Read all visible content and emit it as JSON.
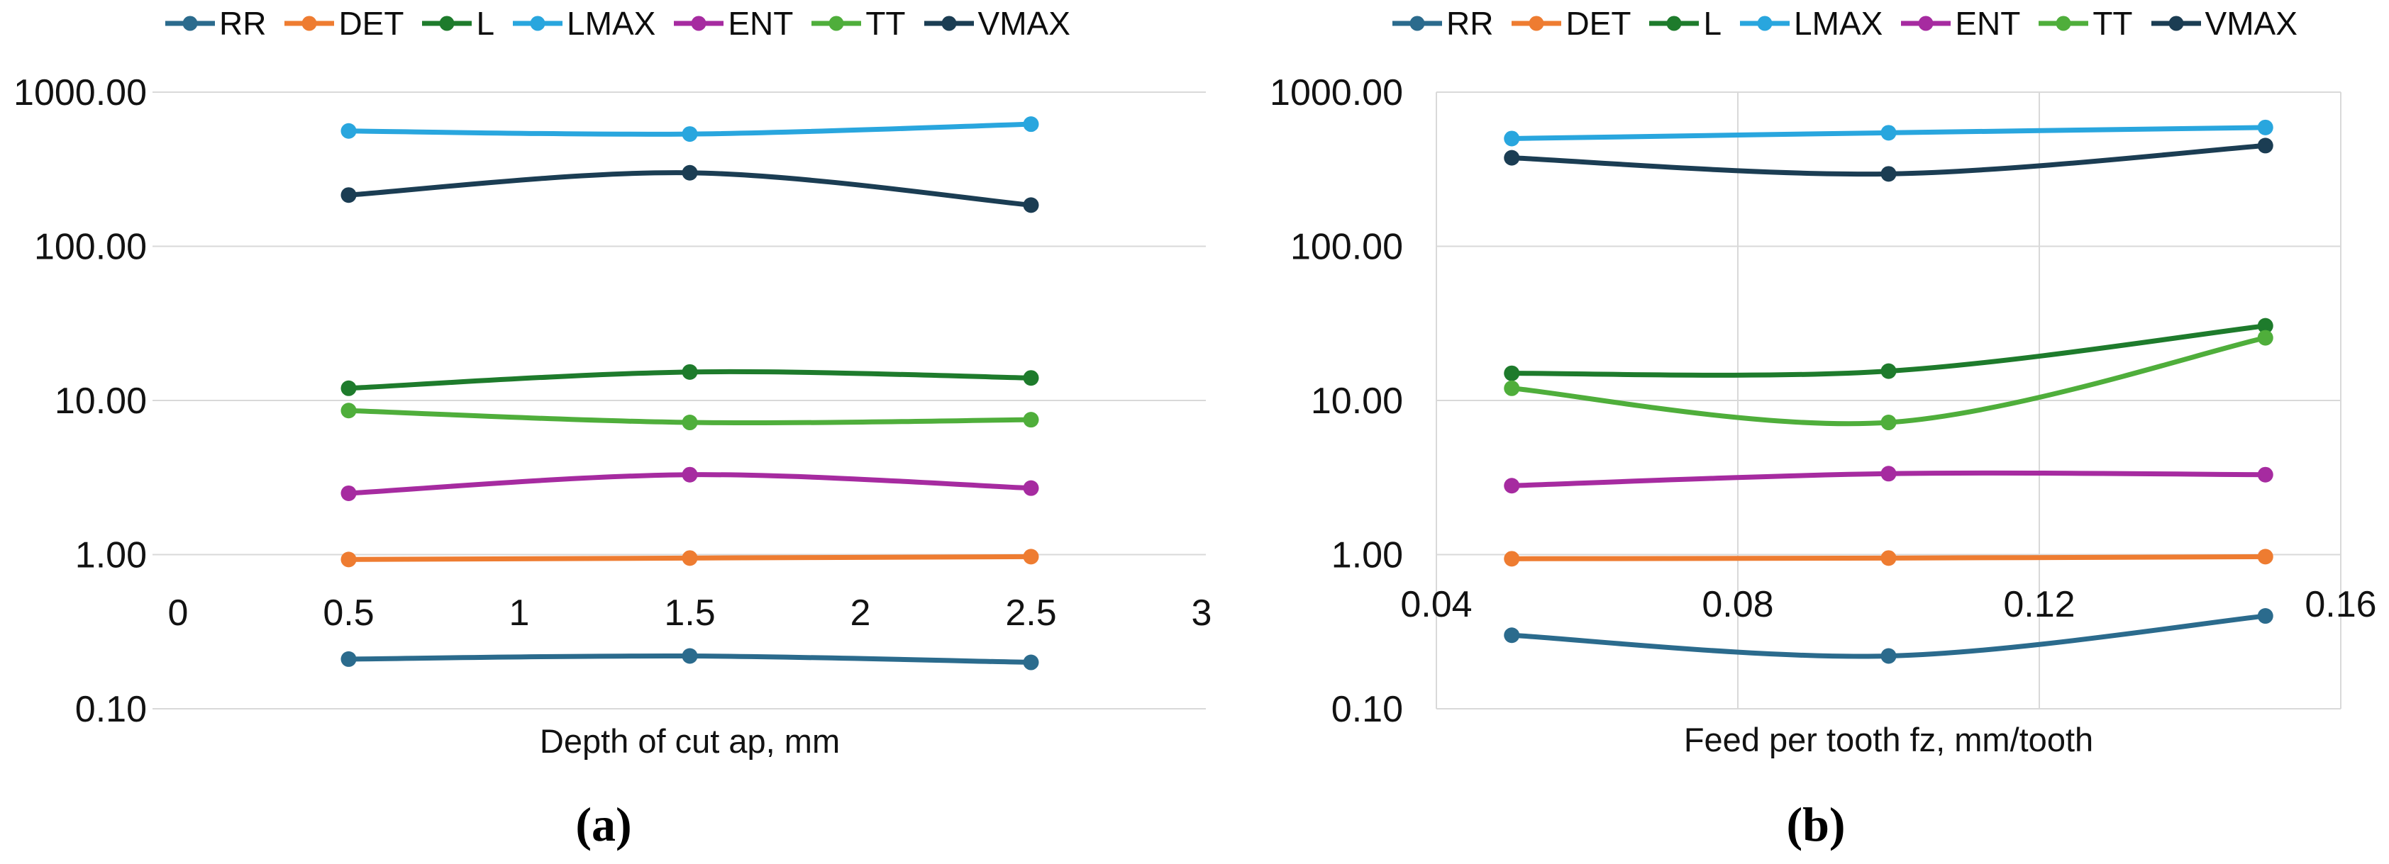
{
  "figure": {
    "background": "#ffffff",
    "gridline_color": "#d9d9d9",
    "captions": {
      "a": "(a)",
      "b": "(b)"
    }
  },
  "chart_data": [
    {
      "id": "a",
      "type": "line",
      "caption": "(a)",
      "xlabel": "Depth of cut ap, mm",
      "x": [
        0.5,
        1.5,
        2.5
      ],
      "series": [
        {
          "name": "RR",
          "color": "#2b6b8d",
          "values": [
            0.21,
            0.22,
            0.2
          ]
        },
        {
          "name": "DET",
          "color": "#ee7c31",
          "values": [
            0.93,
            0.95,
            0.97
          ]
        },
        {
          "name": "L",
          "color": "#1e7b2c",
          "values": [
            12.0,
            15.3,
            14.0
          ]
        },
        {
          "name": "LMAX",
          "color": "#29a6de",
          "values": [
            560,
            535,
            620
          ]
        },
        {
          "name": "ENT",
          "color": "#a62ba0",
          "values": [
            2.5,
            3.3,
            2.7
          ]
        },
        {
          "name": "TT",
          "color": "#4fae3b",
          "values": [
            8.6,
            7.2,
            7.5
          ]
        },
        {
          "name": "VMAX",
          "color": "#1b3d53",
          "values": [
            215,
            300,
            185
          ]
        }
      ],
      "x_axis": {
        "ticks": [
          0,
          0.5,
          1,
          1.5,
          2,
          2.5,
          3
        ],
        "labels": [
          "0",
          "0.5",
          "1",
          "1.5",
          "2",
          "2.5",
          "3"
        ],
        "range": [
          0,
          3
        ]
      },
      "y_axis": {
        "scale": "log",
        "ticks": [
          1000,
          100,
          10,
          1,
          0.1
        ],
        "labels": [
          "1000.00",
          "100.00",
          "10.00",
          "1.00",
          "0.10"
        ],
        "range": [
          0.1,
          1000
        ]
      },
      "grid": {
        "horizontal": true,
        "vertical": false,
        "border": false
      },
      "legend_position": "top",
      "smooth_lines": true
    },
    {
      "id": "b",
      "type": "line",
      "caption": "(b)",
      "xlabel": "Feed per tooth fz, mm/tooth",
      "x": [
        0.05,
        0.1,
        0.15
      ],
      "series": [
        {
          "name": "RR",
          "color": "#2b6b8d",
          "values": [
            0.3,
            0.22,
            0.4
          ]
        },
        {
          "name": "DET",
          "color": "#ee7c31",
          "values": [
            0.94,
            0.95,
            0.97
          ]
        },
        {
          "name": "L",
          "color": "#1e7b2c",
          "values": [
            15.0,
            15.5,
            30.5
          ]
        },
        {
          "name": "LMAX",
          "color": "#29a6de",
          "values": [
            500,
            545,
            590
          ]
        },
        {
          "name": "ENT",
          "color": "#a62ba0",
          "values": [
            2.8,
            3.35,
            3.3
          ]
        },
        {
          "name": "TT",
          "color": "#4fae3b",
          "values": [
            12.0,
            7.2,
            25.5
          ]
        },
        {
          "name": "VMAX",
          "color": "#1b3d53",
          "values": [
            375,
            295,
            450
          ]
        }
      ],
      "x_axis": {
        "ticks": [
          0.04,
          0.08,
          0.12,
          0.16
        ],
        "labels": [
          "0.04",
          "0.08",
          "0.12",
          "0.16"
        ],
        "range": [
          0.04,
          0.16
        ]
      },
      "y_axis": {
        "scale": "log",
        "ticks": [
          1000,
          100,
          10,
          1,
          0.1
        ],
        "labels": [
          "1000.00",
          "100.00",
          "10.00",
          "1.00",
          "0.10"
        ],
        "range": [
          0.1,
          1000
        ]
      },
      "grid": {
        "horizontal": true,
        "vertical": true,
        "border": true
      },
      "legend_position": "top",
      "smooth_lines": true
    }
  ]
}
